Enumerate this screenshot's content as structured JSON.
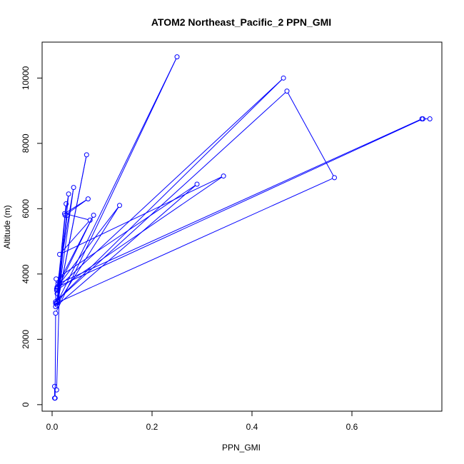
{
  "chart_data": {
    "type": "line",
    "title": "ATOM2 Northeast_Pacific_2 PPN_GMI",
    "xlabel": "PPN_GMI",
    "ylabel": "Altitude (m)",
    "xlim": [
      -0.02,
      0.78
    ],
    "ylim": [
      -200,
      11100
    ],
    "xticks": [
      0.0,
      0.2,
      0.4,
      0.6
    ],
    "xtick_labels": [
      "0.0",
      "0.2",
      "0.4",
      "0.6"
    ],
    "yticks": [
      0,
      2000,
      4000,
      6000,
      8000,
      10000
    ],
    "ytick_labels": [
      "0",
      "2000",
      "4000",
      "6000",
      "8000",
      "10000"
    ],
    "grid": false,
    "legend": "none",
    "color": "#0000ff",
    "marker": "open-circle",
    "series": [
      {
        "x": [
          0.005,
          0.005,
          0.006,
          0.007,
          0.25,
          0.011,
          0.069,
          0.01,
          0.043,
          0.009,
          0.463,
          0.007,
          0.47,
          0.565,
          0.007,
          0.008,
          0.29,
          0.007,
          0.135,
          0.01,
          0.742,
          0.756,
          0.74,
          0.012,
          0.083,
          0.009,
          0.343,
          0.015,
          0.076,
          0.025,
          0.072,
          0.026,
          0.033,
          0.012,
          0.028,
          0.01,
          0.03,
          0.009,
          0.015,
          0.009
        ],
        "y": [
          200,
          560,
          200,
          2800,
          10650,
          3150,
          7650,
          3050,
          6650,
          3550,
          10000,
          3150,
          9600,
          6950,
          3100,
          3850,
          6750,
          3000,
          6100,
          3600,
          8750,
          8750,
          8750,
          3700,
          5800,
          3500,
          7000,
          4600,
          5650,
          5850,
          6300,
          5800,
          6450,
          3200,
          6150,
          3400,
          5800,
          3100,
          3700,
          450
        ]
      }
    ]
  }
}
